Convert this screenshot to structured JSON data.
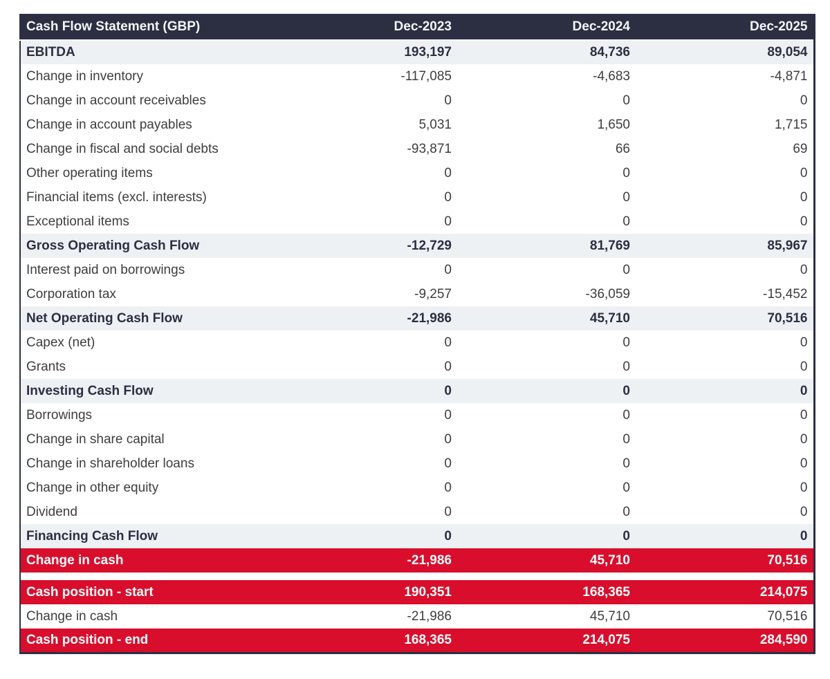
{
  "colors": {
    "navy": "#2c2f42",
    "red": "#d80e2c",
    "subtotal_row_bg": "#edf1f4",
    "header_text": "#f4f5f7",
    "body_text": "#3d3d3d"
  },
  "chart_data": {
    "type": "table",
    "title": "Cash Flow Statement (GBP)",
    "currency": "GBP",
    "columns": [
      "Dec-2023",
      "Dec-2024",
      "Dec-2025"
    ],
    "rows": [
      {
        "label": "EBITDA",
        "values": [
          "193,197",
          "84,736",
          "89,054"
        ],
        "style": "subtotal"
      },
      {
        "label": "Change in inventory",
        "values": [
          "-117,085",
          "-4,683",
          "-4,871"
        ],
        "style": "normal"
      },
      {
        "label": "Change in account receivables",
        "values": [
          "0",
          "0",
          "0"
        ],
        "style": "normal"
      },
      {
        "label": "Change in account payables",
        "values": [
          "5,031",
          "1,650",
          "1,715"
        ],
        "style": "normal"
      },
      {
        "label": "Change in fiscal and social debts",
        "values": [
          "-93,871",
          "66",
          "69"
        ],
        "style": "normal"
      },
      {
        "label": "Other operating items",
        "values": [
          "0",
          "0",
          "0"
        ],
        "style": "normal"
      },
      {
        "label": "Financial items (excl. interests)",
        "values": [
          "0",
          "0",
          "0"
        ],
        "style": "normal"
      },
      {
        "label": "Exceptional items",
        "values": [
          "0",
          "0",
          "0"
        ],
        "style": "normal"
      },
      {
        "label": "Gross Operating Cash Flow",
        "values": [
          "-12,729",
          "81,769",
          "85,967"
        ],
        "style": "subtotal"
      },
      {
        "label": "Interest paid on borrowings",
        "values": [
          "0",
          "0",
          "0"
        ],
        "style": "normal"
      },
      {
        "label": "Corporation tax",
        "values": [
          "-9,257",
          "-36,059",
          "-15,452"
        ],
        "style": "normal"
      },
      {
        "label": "Net Operating Cash Flow",
        "values": [
          "-21,986",
          "45,710",
          "70,516"
        ],
        "style": "subtotal"
      },
      {
        "label": "Capex (net)",
        "values": [
          "0",
          "0",
          "0"
        ],
        "style": "normal"
      },
      {
        "label": "Grants",
        "values": [
          "0",
          "0",
          "0"
        ],
        "style": "normal"
      },
      {
        "label": "Investing Cash Flow",
        "values": [
          "0",
          "0",
          "0"
        ],
        "style": "subtotal"
      },
      {
        "label": "Borrowings",
        "values": [
          "0",
          "0",
          "0"
        ],
        "style": "normal"
      },
      {
        "label": "Change in share capital",
        "values": [
          "0",
          "0",
          "0"
        ],
        "style": "normal"
      },
      {
        "label": "Change in shareholder loans",
        "values": [
          "0",
          "0",
          "0"
        ],
        "style": "normal"
      },
      {
        "label": "Change in other equity",
        "values": [
          "0",
          "0",
          "0"
        ],
        "style": "normal"
      },
      {
        "label": "Dividend",
        "values": [
          "0",
          "0",
          "0"
        ],
        "style": "normal"
      },
      {
        "label": "Financing Cash Flow",
        "values": [
          "0",
          "0",
          "0"
        ],
        "style": "subtotal"
      },
      {
        "label": "Change in cash",
        "values": [
          "-21,986",
          "45,710",
          "70,516"
        ],
        "style": "highlight"
      },
      {
        "label": "",
        "values": [
          "",
          "",
          ""
        ],
        "style": "spacer"
      },
      {
        "label": "Cash position - start",
        "values": [
          "190,351",
          "168,365",
          "214,075"
        ],
        "style": "highlight"
      },
      {
        "label": "Change in cash",
        "values": [
          "-21,986",
          "45,710",
          "70,516"
        ],
        "style": "normal"
      },
      {
        "label": "Cash position - end",
        "values": [
          "168,365",
          "214,075",
          "284,590"
        ],
        "style": "highlight"
      }
    ]
  }
}
